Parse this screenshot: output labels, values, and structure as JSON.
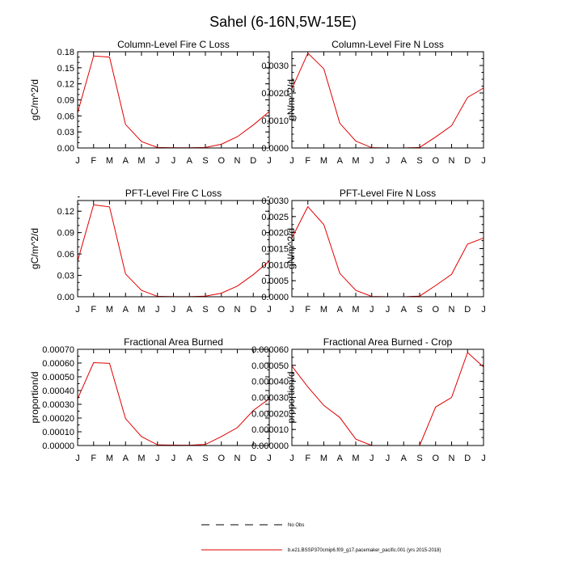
{
  "page_title": "Sahel (6-16N,5W-15E)",
  "colors": {
    "series": "#e00000",
    "axis": "#000000",
    "obs": "#000000"
  },
  "months": [
    "J",
    "F",
    "M",
    "A",
    "M",
    "J",
    "J",
    "A",
    "S",
    "O",
    "N",
    "D",
    "J"
  ],
  "legend": {
    "obs_label": "No Obs",
    "model_label": "b.e21.BSSP370cmip6.f09_g17.pacemaker_pacific.001 (yrs 2015-2018)"
  },
  "chart_data": [
    {
      "type": "line",
      "title": "Column-Level Fire C Loss",
      "ylabel": "gC/m^2/d",
      "ylim": [
        0,
        0.18
      ],
      "yticks": [
        "0.00",
        "0.03",
        "0.06",
        "0.09",
        "0.12",
        "0.15",
        "0.18"
      ],
      "minor_step": 0.01,
      "values": [
        0.066,
        0.172,
        0.17,
        0.044,
        0.012,
        0.001,
        0.0003,
        0.0003,
        0.001,
        0.007,
        0.021,
        0.043,
        0.068
      ]
    },
    {
      "type": "line",
      "title": "Column-Level Fire N Loss",
      "ylabel": "gN/m^2/d",
      "ylim": [
        0,
        0.0035
      ],
      "yticks": [
        "0.0000",
        "0.0010",
        "0.0020",
        "0.0030"
      ],
      "ytick_values": [
        0,
        0.001,
        0.002,
        0.003
      ],
      "minor_step": 0.00025,
      "values": [
        0.00215,
        0.00345,
        0.00288,
        0.0009,
        0.00025,
        1e-05,
        0.0,
        0.0,
        2e-05,
        0.0004,
        0.00081,
        0.00184,
        0.00218
      ]
    },
    {
      "type": "line",
      "title": "PFT-Level Fire C Loss",
      "ylabel": "gC/m^2/d",
      "ylim": [
        0,
        0.135
      ],
      "yticks": [
        "0.00",
        "0.03",
        "0.06",
        "0.09",
        "0.12"
      ],
      "ytick_values": [
        0,
        0.03,
        0.06,
        0.09,
        0.12
      ],
      "minor_step": 0.01,
      "values": [
        0.05,
        0.129,
        0.126,
        0.032,
        0.009,
        0.0005,
        0.0002,
        0.0002,
        0.0008,
        0.005,
        0.015,
        0.031,
        0.05
      ]
    },
    {
      "type": "line",
      "title": "PFT-Level Fire N Loss",
      "ylabel": "gN/m^2/d",
      "ylim": [
        0,
        0.003
      ],
      "yticks": [
        "0.0000",
        "0.0005",
        "0.0010",
        "0.0015",
        "0.0020",
        "0.0025",
        "0.0030"
      ],
      "minor_step": 0.00025,
      "values": [
        0.00183,
        0.00281,
        0.00225,
        0.00073,
        0.0002,
        1e-05,
        0.0,
        0.0,
        2e-05,
        0.00035,
        0.0007,
        0.00164,
        0.00183
      ]
    },
    {
      "type": "line",
      "title": "Fractional Area Burned",
      "ylabel": "proportion/d",
      "ylim": [
        0,
        0.0007
      ],
      "yticks": [
        "0.00000",
        "0.00010",
        "0.00020",
        "0.00030",
        "0.00040",
        "0.00050",
        "0.00060",
        "0.00070"
      ],
      "minor_step": 5e-05,
      "values": [
        0.00034,
        0.000603,
        0.000598,
        0.000196,
        6.5e-05,
        5e-06,
        3e-06,
        2e-06,
        8e-06,
        6.5e-05,
        0.00013,
        0.000255,
        0.00034
      ]
    },
    {
      "type": "line",
      "title": "Fractional Area Burned - Crop",
      "ylabel": "proportion/d",
      "ylim": [
        0,
        6e-05
      ],
      "yticks": [
        "0.000000",
        "0.000010",
        "0.000020",
        "0.000030",
        "0.000040",
        "0.000050",
        "0.000060"
      ],
      "minor_step": 5e-06,
      "values": [
        4.95e-05,
        3.65e-05,
        2.5e-05,
        1.75e-05,
        4e-06,
        0.0,
        0.0,
        0.0,
        0.0,
        2.4e-05,
        3e-05,
        5.8e-05,
        4.9e-05
      ]
    }
  ]
}
